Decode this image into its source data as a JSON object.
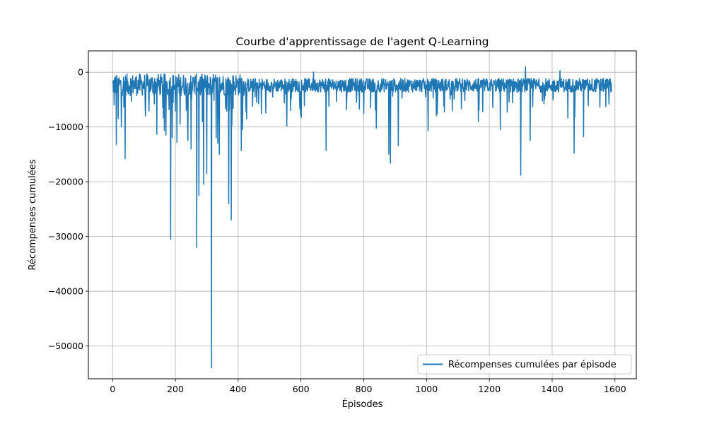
{
  "chart_data": {
    "type": "line",
    "title": "Courbe d'apprentissage de l'agent Q-Learning",
    "xlabel": "Épisodes",
    "ylabel": "Récompenses cumulées",
    "xlim": [
      -77,
      1668
    ],
    "ylim": [
      -56000,
      3900
    ],
    "xticks": [
      0,
      200,
      400,
      600,
      800,
      1000,
      1200,
      1400,
      1600
    ],
    "yticks": [
      0,
      -10000,
      -20000,
      -30000,
      -40000,
      -50000
    ],
    "xtick_labels": [
      "0",
      "200",
      "400",
      "600",
      "800",
      "1000",
      "1200",
      "1400",
      "1600"
    ],
    "ytick_labels": [
      "0",
      "−10000",
      "−20000",
      "−30000",
      "−40000",
      "−50000"
    ],
    "grid": true,
    "legend_position": "bottom-right",
    "series": [
      {
        "name": "Récompenses cumulées par épisode",
        "color": "#1f77b4",
        "n_episodes": 1590,
        "baseline": -2500,
        "noise_amplitude": 2500,
        "spikes": [
          {
            "x": 5,
            "y": -6000
          },
          {
            "x": 12,
            "y": -13200
          },
          {
            "x": 18,
            "y": -8500
          },
          {
            "x": 28,
            "y": -10000
          },
          {
            "x": 40,
            "y": -15800
          },
          {
            "x": 105,
            "y": -8000
          },
          {
            "x": 160,
            "y": -6500
          },
          {
            "x": 185,
            "y": -30500
          },
          {
            "x": 205,
            "y": -12800
          },
          {
            "x": 215,
            "y": -9500
          },
          {
            "x": 240,
            "y": -12500
          },
          {
            "x": 250,
            "y": -14000
          },
          {
            "x": 268,
            "y": -32000
          },
          {
            "x": 275,
            "y": -22500
          },
          {
            "x": 290,
            "y": -20500
          },
          {
            "x": 300,
            "y": -18500
          },
          {
            "x": 315,
            "y": -54000
          },
          {
            "x": 335,
            "y": -13000
          },
          {
            "x": 340,
            "y": -15000
          },
          {
            "x": 370,
            "y": -24000
          },
          {
            "x": 378,
            "y": -27000
          },
          {
            "x": 410,
            "y": -14300
          },
          {
            "x": 555,
            "y": -9800
          },
          {
            "x": 680,
            "y": -14300
          },
          {
            "x": 840,
            "y": -10200
          },
          {
            "x": 880,
            "y": -15000
          },
          {
            "x": 885,
            "y": -16600
          },
          {
            "x": 910,
            "y": -13400
          },
          {
            "x": 1005,
            "y": -10700
          },
          {
            "x": 1165,
            "y": -9000
          },
          {
            "x": 1235,
            "y": -10500
          },
          {
            "x": 1300,
            "y": -18800
          },
          {
            "x": 1330,
            "y": -12500
          },
          {
            "x": 1470,
            "y": -14800
          },
          {
            "x": 1500,
            "y": -11800
          }
        ],
        "peaks": [
          {
            "x": 1315,
            "y": 1000
          },
          {
            "x": 1425,
            "y": 300
          },
          {
            "x": 640,
            "y": 50
          }
        ]
      }
    ]
  }
}
